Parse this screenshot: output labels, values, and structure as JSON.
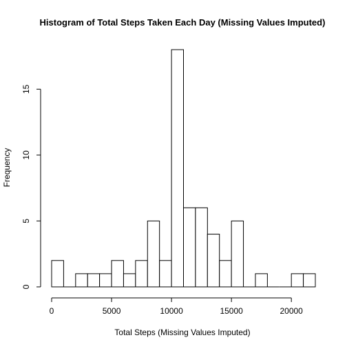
{
  "chart_data": {
    "type": "bar",
    "subtype": "histogram",
    "title": "Histogram of Total Steps Taken Each Day (Missing Values Imputed)",
    "xlabel": "Total Steps (Missing Values Imputed)",
    "ylabel": "Frequency",
    "bin_width": 1000,
    "bins": [
      {
        "start": 0,
        "end": 1000,
        "count": 2
      },
      {
        "start": 1000,
        "end": 2000,
        "count": 0
      },
      {
        "start": 2000,
        "end": 3000,
        "count": 1
      },
      {
        "start": 3000,
        "end": 4000,
        "count": 1
      },
      {
        "start": 4000,
        "end": 5000,
        "count": 1
      },
      {
        "start": 5000,
        "end": 6000,
        "count": 2
      },
      {
        "start": 6000,
        "end": 7000,
        "count": 1
      },
      {
        "start": 7000,
        "end": 8000,
        "count": 2
      },
      {
        "start": 8000,
        "end": 9000,
        "count": 5
      },
      {
        "start": 9000,
        "end": 10000,
        "count": 2
      },
      {
        "start": 10000,
        "end": 11000,
        "count": 18
      },
      {
        "start": 11000,
        "end": 12000,
        "count": 6
      },
      {
        "start": 12000,
        "end": 13000,
        "count": 6
      },
      {
        "start": 13000,
        "end": 14000,
        "count": 4
      },
      {
        "start": 14000,
        "end": 15000,
        "count": 2
      },
      {
        "start": 15000,
        "end": 16000,
        "count": 5
      },
      {
        "start": 16000,
        "end": 17000,
        "count": 0
      },
      {
        "start": 17000,
        "end": 18000,
        "count": 1
      },
      {
        "start": 18000,
        "end": 19000,
        "count": 0
      },
      {
        "start": 19000,
        "end": 20000,
        "count": 0
      },
      {
        "start": 20000,
        "end": 21000,
        "count": 1
      },
      {
        "start": 21000,
        "end": 22000,
        "count": 1
      }
    ],
    "xlim": [
      0,
      22000
    ],
    "ylim": [
      0,
      18
    ],
    "x_ticks": [
      0,
      5000,
      10000,
      15000,
      20000
    ],
    "y_ticks": [
      0,
      5,
      10,
      15
    ],
    "grid": false,
    "bar_fill": "#ffffff",
    "bar_stroke": "#000000"
  }
}
